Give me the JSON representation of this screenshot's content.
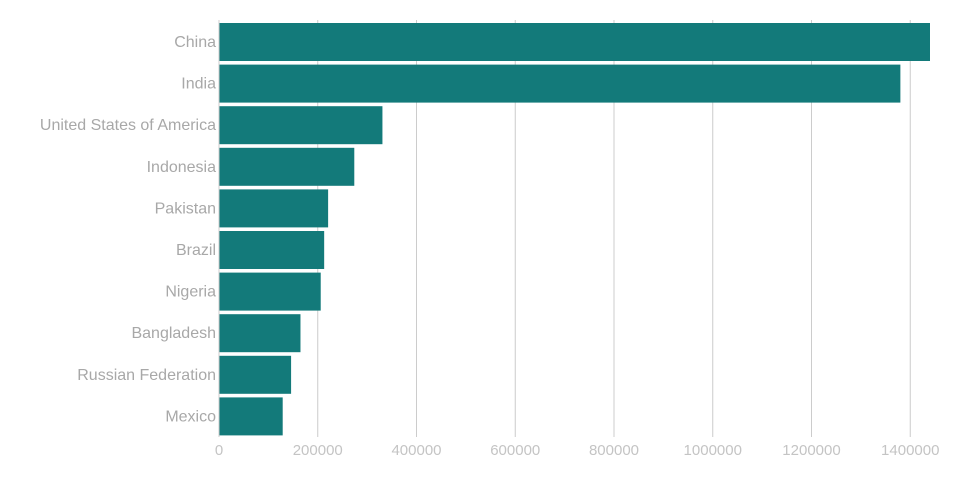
{
  "chart_data": {
    "type": "bar",
    "orientation": "horizontal",
    "categories": [
      "China",
      "India",
      "United States of America",
      "Indonesia",
      "Pakistan",
      "Brazil",
      "Nigeria",
      "Bangladesh",
      "Russian Federation",
      "Mexico"
    ],
    "values": [
      1440000,
      1380000,
      331000,
      274000,
      221000,
      213000,
      206000,
      165000,
      146000,
      129000
    ],
    "title": "",
    "xlabel": "",
    "ylabel": "",
    "xlim": [
      0,
      1440000
    ],
    "xticks": [
      0,
      200000,
      400000,
      600000,
      800000,
      1000000,
      1200000,
      1400000
    ],
    "xtick_labels": [
      "0",
      "200000",
      "400000",
      "600000",
      "800000",
      "1000000",
      "1200000",
      "1400000"
    ],
    "grid": true,
    "legend": "none",
    "bar_color": "#137a7a"
  }
}
